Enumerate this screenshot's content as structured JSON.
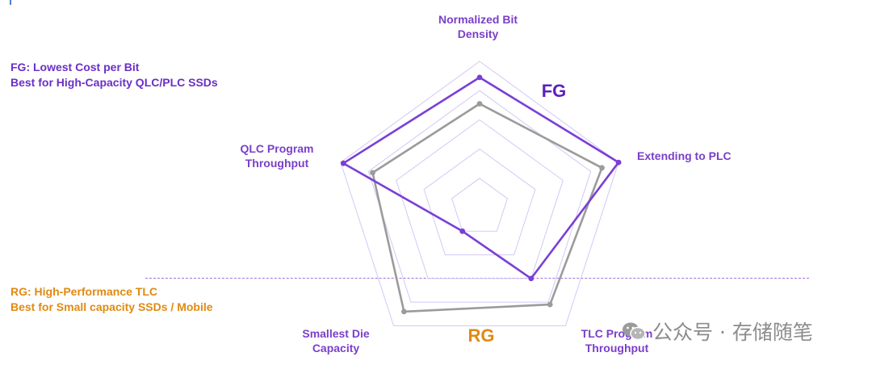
{
  "notes": {
    "fg_line1": "FG: Lowest Cost per Bit",
    "fg_line2": "Best for High-Capacity QLC/PLC SSDs",
    "rg_line1": "RG: High-Performance TLC",
    "rg_line2": "Best for Small  capacity SSDs / Mobile"
  },
  "watermark": {
    "text": "公众号 · 存储随笔",
    "icon": "wechat-icon"
  },
  "colors": {
    "fg": "#7a3fd6",
    "rg": "#9b9b9b",
    "grid": "#cfcaf5",
    "rg_text": "#e08a12",
    "fg_text": "#6a2fc7"
  },
  "chart_data": {
    "type": "radar",
    "axes": [
      [
        "Normalized Bit",
        "Density"
      ],
      [
        "Extending to PLC"
      ],
      [
        "TLC Program",
        "Throughput"
      ],
      [
        "Smallest Die",
        "Capacity"
      ],
      [
        "QLC Program",
        "Throughput"
      ]
    ],
    "rings": 5,
    "range": [
      0,
      1
    ],
    "series": [
      {
        "name": "FG",
        "values": [
          0.89,
          1.0,
          0.6,
          0.2,
          0.98
        ]
      },
      {
        "name": "RG",
        "values": [
          0.71,
          0.88,
          0.82,
          0.88,
          0.77
        ]
      }
    ]
  }
}
